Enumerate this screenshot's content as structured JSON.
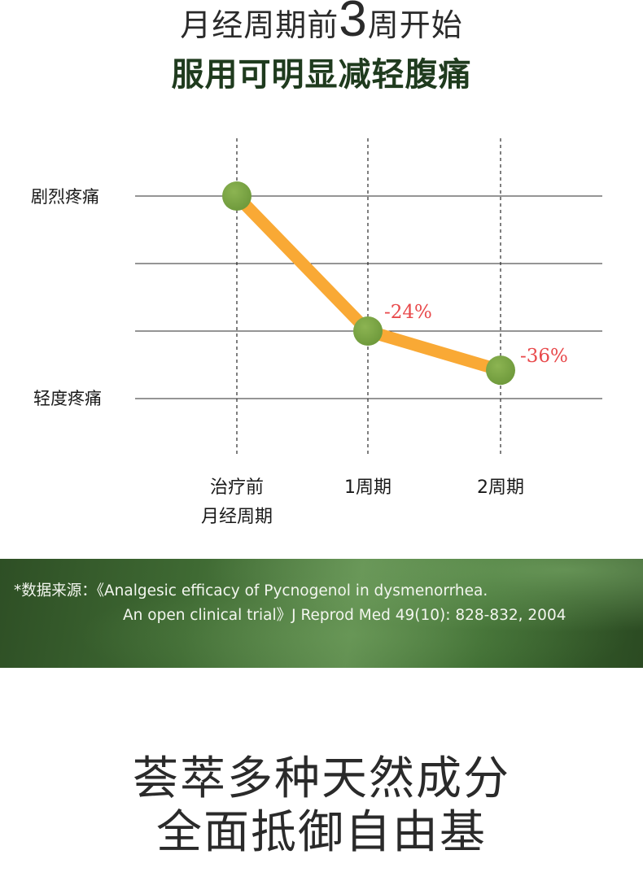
{
  "header": {
    "line1_before": "月经周期前",
    "line1_number": "3",
    "line1_after": "周开始",
    "line2_before": "服用",
    "line2_emphasis": "可明显减轻腹痛"
  },
  "chart_data": {
    "type": "line",
    "title": "",
    "xlabel": "",
    "ylabel": "",
    "categories": [
      "治疗前\n月经周期",
      "1周期",
      "2周期"
    ],
    "category_lines": [
      [
        "治疗前",
        "月经周期"
      ],
      [
        "1周期"
      ],
      [
        "2周期"
      ]
    ],
    "y_tick_labels": {
      "top": "剧烈疼痛",
      "bottom": "轻度疼痛"
    },
    "ylim": [
      0,
      3
    ],
    "gridlines": [
      3,
      2,
      1,
      0
    ],
    "series": [
      {
        "values": [
          3,
          1,
          0.42
        ],
        "labels": [
          "",
          "-24%",
          "-36%"
        ]
      }
    ],
    "grid": true,
    "line_color": "#f9a935",
    "marker_color": "#6f9a3c",
    "label_color": "#e8494b"
  },
  "banner": {
    "line1": "*数据来源：《Analgesic efficacy of Pycnogenol in dysmenorrhea.",
    "line2": "An open clinical trial》J Reprod Med 49(10): 828-832, 2004"
  },
  "footer": {
    "line1": "荟萃多种天然成分",
    "line2": "全面抵御自由基"
  }
}
